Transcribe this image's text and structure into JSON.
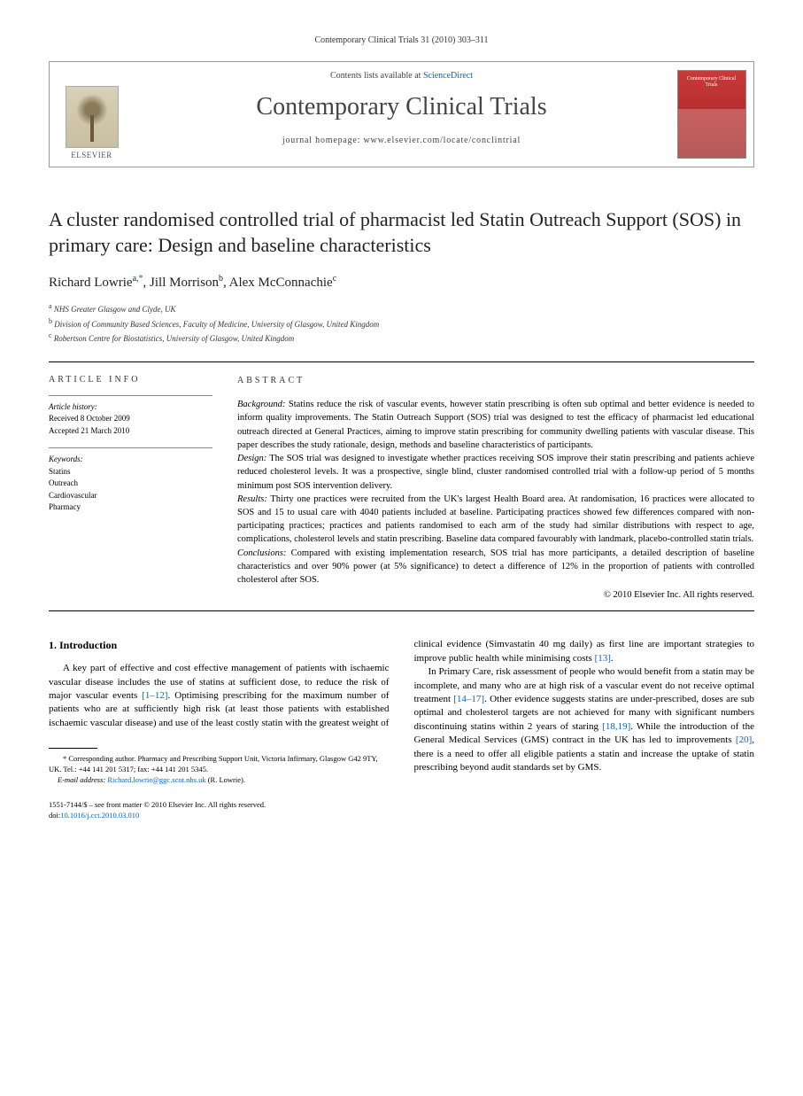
{
  "running_head": "Contemporary Clinical Trials 31 (2010) 303–311",
  "masthead": {
    "contents_prefix": "Contents lists available at ",
    "contents_link": "ScienceDirect",
    "journal_title": "Contemporary Clinical Trials",
    "homepage_prefix": "journal homepage: ",
    "homepage_url": "www.elsevier.com/locate/conclintrial",
    "publisher_label": "ELSEVIER",
    "cover_title": "Contemporary Clinical Trials"
  },
  "article": {
    "title": "A cluster randomised controlled trial of pharmacist led Statin Outreach Support (SOS) in primary care: Design and baseline characteristics",
    "authors_html": "Richard Lowrie",
    "author1": {
      "name": "Richard Lowrie",
      "sup": "a,",
      "corr": "*"
    },
    "sep1": ", ",
    "author2": {
      "name": "Jill Morrison",
      "sup": "b"
    },
    "sep2": ", ",
    "author3": {
      "name": "Alex McConnachie",
      "sup": "c"
    },
    "affiliations": {
      "a": "NHS Greater Glasgow and Clyde, UK",
      "b": "Division of Community Based Sciences, Faculty of Medicine, University of Glasgow, United Kingdom",
      "c": "Robertson Centre for Biostatistics, University of Glasgow, United Kingdom"
    }
  },
  "info": {
    "head": "ARTICLE INFO",
    "history_label": "Article history:",
    "received": "Received 8 October 2009",
    "accepted": "Accepted 21 March 2010",
    "keywords_label": "Keywords:",
    "keywords": [
      "Statins",
      "Outreach",
      "Cardiovascular",
      "Pharmacy"
    ]
  },
  "abstract": {
    "head": "ABSTRACT",
    "background_label": "Background:",
    "background": " Statins reduce the risk of vascular events, however statin prescribing is often sub optimal and better evidence is needed to inform quality improvements. The Statin Outreach Support (SOS) trial was designed to test the efficacy of pharmacist led educational outreach directed at General Practices, aiming to improve statin prescribing for community dwelling patients with vascular disease. This paper describes the study rationale, design, methods and baseline characteristics of participants.",
    "design_label": "Design:",
    "design": " The SOS trial was designed to investigate whether practices receiving SOS improve their statin prescribing and patients achieve reduced cholesterol levels. It was a prospective, single blind, cluster randomised controlled trial with a follow-up period of 5 months minimum post SOS intervention delivery.",
    "results_label": "Results:",
    "results": " Thirty one practices were recruited from the UK's largest Health Board area. At randomisation, 16 practices were allocated to SOS and 15 to usual care with 4040 patients included at baseline. Participating practices showed few differences compared with non-participating practices; practices and patients randomised to each arm of the study had similar distributions with respect to age, complications, cholesterol levels and statin prescribing. Baseline data compared favourably with landmark, placebo-controlled statin trials.",
    "conclusions_label": "Conclusions:",
    "conclusions": " Compared with existing implementation research, SOS trial has more participants, a detailed description of baseline characteristics and over 90% power (at 5% significance) to detect a difference of 12% in the proportion of patients with controlled cholesterol after SOS.",
    "copyright": "© 2010 Elsevier Inc. All rights reserved."
  },
  "body": {
    "section_number": "1.",
    "section_title": "Introduction",
    "col1_p1_a": "A key part of effective and cost effective management of patients with ischaemic vascular disease includes the use of statins at sufficient dose, to reduce the risk of major vascular events ",
    "col1_cite1": "[1–12]",
    "col1_p1_b": ". Optimising prescribing for the maximum number of patients who are at sufficiently high risk (at least those patients with established ischaemic vascular disease) and use of the least costly statin with the greatest weight of",
    "col2_p1_a": "clinical evidence (Simvastatin 40 mg daily) as first line are important strategies to improve public health while minimising costs ",
    "col2_cite1": "[13]",
    "col2_p1_b": ".",
    "col2_p2_a": "In Primary Care, risk assessment of people who would benefit from a statin may be incomplete, and many who are at high risk of a vascular event do not receive optimal treatment ",
    "col2_cite2": "[14–17]",
    "col2_p2_b": ". Other evidence suggests statins are under-prescribed, doses are sub optimal and cholesterol targets are not achieved for many with significant numbers discontinuing statins within 2 years of staring ",
    "col2_cite3": "[18,19]",
    "col2_p2_c": ". While the introduction of the General Medical Services (GMS) contract in the UK has led to improvements ",
    "col2_cite4": "[20]",
    "col2_p2_d": ", there is a need to offer all eligible patients a statin and increase the uptake of statin prescribing beyond audit standards set by GMS."
  },
  "footnotes": {
    "corr_label": "* Corresponding author. ",
    "corr_text": "Pharmacy and Prescribing Support Unit, Victoria Infirmary, Glasgow G42 9TY, UK. Tel.: +44 141 201 5317; fax: +44 141 201 5345.",
    "email_label": "E-mail address: ",
    "email": "Richard.lowrie@ggc.scot.nhs.uk",
    "email_suffix": " (R. Lowrie)."
  },
  "pagefoot": {
    "line1": "1551-7144/$ – see front matter © 2010 Elsevier Inc. All rights reserved.",
    "doi_prefix": "doi:",
    "doi": "10.1016/j.cct.2010.03.010"
  },
  "colors": {
    "link": "#0066cc",
    "text": "#000000",
    "cover_bg": "#b02a2a"
  }
}
